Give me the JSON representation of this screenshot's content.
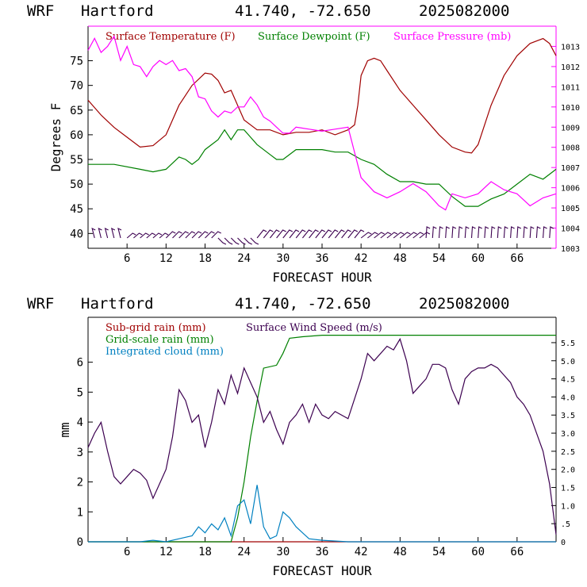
{
  "header": {
    "model": "WRF",
    "station": "Hartford",
    "coords": "41.740, -72.650",
    "run": "2025082000"
  },
  "colors": {
    "temperature": "#a00000",
    "dewpoint": "#008000",
    "pressure": "#ff00ff",
    "wind_barbs": "#3c0050",
    "subgrid_rain": "#a00000",
    "gridscale_rain": "#008000",
    "cloud": "#0080c0",
    "wind_speed": "#3c0050"
  },
  "chart_data": [
    {
      "type": "line",
      "xlabel": "FORECAST HOUR",
      "ylabel": "Degrees F",
      "xlim": [
        0,
        72
      ],
      "ylim": [
        37,
        82
      ],
      "y2lim": [
        1003,
        1014
      ],
      "x_ticks": [
        "6",
        "12",
        "18",
        "24",
        "30",
        "36",
        "42",
        "48",
        "54",
        "60",
        "66"
      ],
      "x_tick_values": [
        6,
        12,
        18,
        24,
        30,
        36,
        42,
        48,
        54,
        60,
        66
      ],
      "y_ticks": [
        40,
        45,
        50,
        55,
        60,
        65,
        70,
        75
      ],
      "y2_ticks": [
        1003,
        1004,
        1005,
        1006,
        1007,
        1008,
        1009,
        1010,
        1011,
        1012,
        1013
      ],
      "grid": false,
      "legend_position": "top",
      "series": [
        {
          "name": "Surface Temperature (F)",
          "axis": "left",
          "points": [
            [
              0,
              67
            ],
            [
              2,
              64
            ],
            [
              4,
              61.5
            ],
            [
              6,
              59.5
            ],
            [
              8,
              57.5
            ],
            [
              10,
              57.8
            ],
            [
              12,
              60
            ],
            [
              13,
              63
            ],
            [
              14,
              66
            ],
            [
              16,
              70
            ],
            [
              18,
              72.5
            ],
            [
              19,
              72.3
            ],
            [
              20,
              71
            ],
            [
              21,
              68.5
            ],
            [
              22,
              69
            ],
            [
              23,
              66
            ],
            [
              24,
              63
            ],
            [
              26,
              61
            ],
            [
              28,
              61
            ],
            [
              30,
              60
            ],
            [
              32,
              60.5
            ],
            [
              34,
              60.5
            ],
            [
              36,
              61
            ],
            [
              38,
              60
            ],
            [
              40,
              61
            ],
            [
              41,
              62
            ],
            [
              41.5,
              66
            ],
            [
              42,
              72
            ],
            [
              43,
              75
            ],
            [
              44,
              75.5
            ],
            [
              45,
              75
            ],
            [
              46,
              73
            ],
            [
              48,
              69
            ],
            [
              50,
              66
            ],
            [
              52,
              63
            ],
            [
              54,
              60
            ],
            [
              56,
              57.5
            ],
            [
              58,
              56.5
            ],
            [
              59,
              56.3
            ],
            [
              60,
              58
            ],
            [
              62,
              66
            ],
            [
              64,
              72
            ],
            [
              66,
              76
            ],
            [
              68,
              78.5
            ],
            [
              70,
              79.5
            ],
            [
              71,
              78.5
            ],
            [
              72,
              76
            ]
          ]
        },
        {
          "name": "Surface Dewpoint (F)",
          "axis": "left",
          "points": [
            [
              0,
              54
            ],
            [
              4,
              54
            ],
            [
              8,
              53
            ],
            [
              10,
              52.5
            ],
            [
              12,
              53
            ],
            [
              14,
              55.5
            ],
            [
              15,
              55
            ],
            [
              16,
              54
            ],
            [
              17,
              55
            ],
            [
              18,
              57
            ],
            [
              20,
              59
            ],
            [
              21,
              61
            ],
            [
              22,
              59
            ],
            [
              23,
              61
            ],
            [
              24,
              61
            ],
            [
              25,
              59.5
            ],
            [
              26,
              58
            ],
            [
              28,
              56
            ],
            [
              29,
              55
            ],
            [
              30,
              55
            ],
            [
              32,
              57
            ],
            [
              34,
              57
            ],
            [
              36,
              57
            ],
            [
              38,
              56.5
            ],
            [
              40,
              56.5
            ],
            [
              42,
              55
            ],
            [
              44,
              54
            ],
            [
              46,
              52
            ],
            [
              48,
              50.5
            ],
            [
              50,
              50.5
            ],
            [
              52,
              50
            ],
            [
              54,
              50
            ],
            [
              56,
              47.5
            ],
            [
              58,
              45.5
            ],
            [
              60,
              45.5
            ],
            [
              62,
              47
            ],
            [
              64,
              48
            ],
            [
              66,
              50
            ],
            [
              68,
              52
            ],
            [
              70,
              51
            ],
            [
              72,
              53
            ]
          ]
        },
        {
          "name": "Surface Pressure (mb)",
          "axis": "right",
          "points": [
            [
              0,
              1012.8
            ],
            [
              1,
              1013.4
            ],
            [
              2,
              1012.7
            ],
            [
              3,
              1013
            ],
            [
              4,
              1013.5
            ],
            [
              5,
              1012.3
            ],
            [
              6,
              1013
            ],
            [
              7,
              1012.1
            ],
            [
              8,
              1012
            ],
            [
              9,
              1011.5
            ],
            [
              10,
              1012
            ],
            [
              11,
              1012.3
            ],
            [
              12,
              1012.1
            ],
            [
              13,
              1012.3
            ],
            [
              14,
              1011.8
            ],
            [
              15,
              1011.9
            ],
            [
              16,
              1011.5
            ],
            [
              17,
              1010.5
            ],
            [
              18,
              1010.4
            ],
            [
              19,
              1009.8
            ],
            [
              20,
              1009.5
            ],
            [
              21,
              1009.8
            ],
            [
              22,
              1009.7
            ],
            [
              23,
              1010
            ],
            [
              24,
              1010
            ],
            [
              25,
              1010.5
            ],
            [
              26,
              1010.1
            ],
            [
              27,
              1009.5
            ],
            [
              28,
              1009.3
            ],
            [
              29,
              1009
            ],
            [
              30,
              1008.7
            ],
            [
              31,
              1008.7
            ],
            [
              32,
              1009
            ],
            [
              34,
              1008.9
            ],
            [
              36,
              1008.8
            ],
            [
              38,
              1008.9
            ],
            [
              40,
              1009
            ],
            [
              42,
              1006.5
            ],
            [
              44,
              1005.8
            ],
            [
              46,
              1005.5
            ],
            [
              48,
              1005.8
            ],
            [
              50,
              1006.2
            ],
            [
              52,
              1005.8
            ],
            [
              54,
              1005.1
            ],
            [
              55,
              1004.9
            ],
            [
              56,
              1005.7
            ],
            [
              58,
              1005.5
            ],
            [
              60,
              1005.7
            ],
            [
              62,
              1006.3
            ],
            [
              64,
              1005.9
            ],
            [
              66,
              1005.7
            ],
            [
              68,
              1005.1
            ],
            [
              70,
              1005.5
            ],
            [
              72,
              1005.7
            ]
          ]
        }
      ]
    },
    {
      "type": "line",
      "xlabel": "FORECAST HOUR",
      "ylabel": "mm",
      "xlim": [
        0,
        72
      ],
      "ylim": [
        0,
        7.5
      ],
      "y2lim": [
        0,
        6.2
      ],
      "x_ticks": [
        "6",
        "12",
        "18",
        "24",
        "30",
        "36",
        "42",
        "48",
        "54",
        "60",
        "66"
      ],
      "x_tick_values": [
        6,
        12,
        18,
        24,
        30,
        36,
        42,
        48,
        54,
        60,
        66
      ],
      "y_ticks": [
        0,
        1,
        2,
        3,
        4,
        5,
        6
      ],
      "y2_ticks": [
        0,
        0.5,
        1.0,
        1.5,
        2.0,
        2.5,
        3.0,
        3.5,
        4.0,
        4.5,
        5.0,
        5.5
      ],
      "y2_tick_labels": [
        "0",
        ".5",
        "1.0",
        "1.5",
        "2.0",
        "2.5",
        "3.0",
        "3.5",
        "4.0",
        "4.5",
        "5.0",
        "5.5"
      ],
      "grid": false,
      "legend_position": "top",
      "series": [
        {
          "name": "Sub-grid rain (mm)",
          "axis": "left",
          "points": [
            [
              0,
              0
            ],
            [
              72,
              0
            ]
          ]
        },
        {
          "name": "Grid-scale rain (mm)",
          "axis": "left",
          "points": [
            [
              0,
              0
            ],
            [
              22,
              0
            ],
            [
              23,
              0.8
            ],
            [
              24,
              2
            ],
            [
              25,
              3.5
            ],
            [
              26,
              4.7
            ],
            [
              27,
              5.8
            ],
            [
              29,
              5.9
            ],
            [
              30,
              6.3
            ],
            [
              31,
              6.8
            ],
            [
              33,
              6.85
            ],
            [
              36,
              6.9
            ],
            [
              72,
              6.9
            ]
          ]
        },
        {
          "name": "Integrated cloud (mm)",
          "axis": "left",
          "points": [
            [
              0,
              0
            ],
            [
              8,
              0
            ],
            [
              10,
              0.05
            ],
            [
              12,
              0
            ],
            [
              14,
              0.1
            ],
            [
              16,
              0.2
            ],
            [
              17,
              0.5
            ],
            [
              18,
              0.3
            ],
            [
              19,
              0.6
            ],
            [
              20,
              0.4
            ],
            [
              21,
              0.8
            ],
            [
              22,
              0.2
            ],
            [
              23,
              1.2
            ],
            [
              24,
              1.4
            ],
            [
              25,
              0.6
            ],
            [
              26,
              1.9
            ],
            [
              27,
              0.5
            ],
            [
              28,
              0.1
            ],
            [
              29,
              0.2
            ],
            [
              30,
              1.0
            ],
            [
              31,
              0.8
            ],
            [
              32,
              0.5
            ],
            [
              34,
              0.1
            ],
            [
              36,
              0.05
            ],
            [
              40,
              0
            ],
            [
              72,
              0
            ]
          ]
        },
        {
          "name": "Surface Wind Speed (m/s)",
          "axis": "right",
          "points": [
            [
              0,
              2.6
            ],
            [
              1,
              3.0
            ],
            [
              2,
              3.3
            ],
            [
              3,
              2.5
            ],
            [
              4,
              1.8
            ],
            [
              5,
              1.6
            ],
            [
              6,
              1.8
            ],
            [
              7,
              2.0
            ],
            [
              8,
              1.9
            ],
            [
              9,
              1.7
            ],
            [
              10,
              1.2
            ],
            [
              11,
              1.6
            ],
            [
              12,
              2.0
            ],
            [
              13,
              2.9
            ],
            [
              14,
              4.2
            ],
            [
              15,
              3.9
            ],
            [
              16,
              3.3
            ],
            [
              17,
              3.5
            ],
            [
              18,
              2.6
            ],
            [
              19,
              3.3
            ],
            [
              20,
              4.2
            ],
            [
              21,
              3.8
            ],
            [
              22,
              4.6
            ],
            [
              23,
              4.1
            ],
            [
              24,
              4.8
            ],
            [
              25,
              4.4
            ],
            [
              26,
              4.0
            ],
            [
              27,
              3.3
            ],
            [
              28,
              3.6
            ],
            [
              29,
              3.1
            ],
            [
              30,
              2.7
            ],
            [
              31,
              3.3
            ],
            [
              32,
              3.5
            ],
            [
              33,
              3.8
            ],
            [
              34,
              3.3
            ],
            [
              35,
              3.8
            ],
            [
              36,
              3.5
            ],
            [
              37,
              3.4
            ],
            [
              38,
              3.6
            ],
            [
              40,
              3.4
            ],
            [
              42,
              4.5
            ],
            [
              43,
              5.2
            ],
            [
              44,
              5.0
            ],
            [
              46,
              5.4
            ],
            [
              47,
              5.3
            ],
            [
              48,
              5.6
            ],
            [
              49,
              5.0
            ],
            [
              50,
              4.1
            ],
            [
              51,
              4.3
            ],
            [
              52,
              4.5
            ],
            [
              53,
              4.9
            ],
            [
              54,
              4.9
            ],
            [
              55,
              4.8
            ],
            [
              56,
              4.2
            ],
            [
              57,
              3.8
            ],
            [
              58,
              4.5
            ],
            [
              59,
              4.7
            ],
            [
              60,
              4.8
            ],
            [
              61,
              4.8
            ],
            [
              62,
              4.9
            ],
            [
              63,
              4.8
            ],
            [
              64,
              4.6
            ],
            [
              65,
              4.4
            ],
            [
              66,
              4.0
            ],
            [
              67,
              3.8
            ],
            [
              68,
              3.5
            ],
            [
              69,
              3.0
            ],
            [
              70,
              2.5
            ],
            [
              71,
              1.6
            ],
            [
              72,
              0.2
            ]
          ]
        }
      ]
    }
  ]
}
